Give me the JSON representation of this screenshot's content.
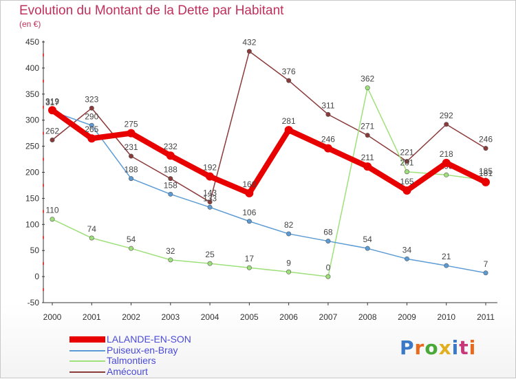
{
  "header": {
    "title": "Evolution du Montant de la Dette par Habitant",
    "subtitle": "(en €)"
  },
  "logo": {
    "text": "Proxiti",
    "letter_colors": [
      "#3a78c8",
      "#e86a1e",
      "#4aa838",
      "#e0b020",
      "#3a78c8",
      "#c83878",
      "#e86a1e"
    ]
  },
  "colors": {
    "title": "#c0305c",
    "axis": "#333333",
    "grid_tick": "#e04040"
  },
  "chart_data": {
    "type": "line",
    "title": "Evolution du Montant de la Dette par Habitant",
    "subtitle": "(en €)",
    "xlabel": "",
    "ylabel": "",
    "categories": [
      "2000",
      "2001",
      "2002",
      "2003",
      "2004",
      "2005",
      "2006",
      "2007",
      "2008",
      "2009",
      "2010",
      "2011"
    ],
    "ylim": [
      -50,
      450
    ],
    "yticks": [
      -50,
      0,
      50,
      100,
      150,
      200,
      250,
      300,
      350,
      400,
      450
    ],
    "grid": false,
    "legend_position": "bottom-left",
    "series": [
      {
        "name": "LALANDE-EN-SON",
        "color": "#e80000",
        "values": [
          319,
          265,
          275,
          232,
          192,
          160,
          281,
          246,
          211,
          165,
          218,
          181
        ],
        "labels": [
          "319",
          "265",
          "275",
          "232",
          "192",
          "160",
          "281",
          "246",
          "211",
          "165",
          "218",
          "181"
        ]
      },
      {
        "name": "Puiseux-en-Bray",
        "color": "#5b9bd5",
        "values": [
          317,
          290,
          188,
          158,
          133,
          106,
          82,
          68,
          54,
          34,
          21,
          7
        ],
        "labels": [
          "317",
          "290",
          "188",
          "158",
          "133",
          "106",
          "82",
          "68",
          "54",
          "34",
          "21",
          "7"
        ]
      },
      {
        "name": "Talmontiers",
        "color": "#9ee07a",
        "values": [
          110,
          74,
          54,
          32,
          25,
          17,
          9,
          0,
          362,
          201,
          195,
          185
        ],
        "labels": [
          "110",
          "74",
          "54",
          "32",
          "25",
          "17",
          "9",
          "0",
          "362",
          "201",
          "195",
          "185"
        ]
      },
      {
        "name": "Amécourt",
        "color": "#8b3a3a",
        "values": [
          262,
          323,
          231,
          188,
          143,
          432,
          376,
          311,
          271,
          221,
          292,
          246
        ],
        "labels": [
          "262",
          "323",
          "231",
          "188",
          "143",
          "432",
          "376",
          "311",
          "271",
          "221",
          "292",
          "246"
        ]
      }
    ]
  }
}
